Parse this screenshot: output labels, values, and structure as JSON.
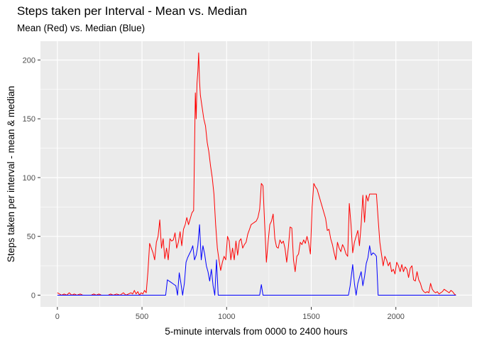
{
  "chart_data": {
    "type": "line",
    "title": "Steps taken per Interval - Mean vs. Median",
    "subtitle": "Mean (Red) vs. Median (Blue)",
    "xlabel": "5-minute intervals from 0000 to 2400 hours",
    "ylabel": "Steps taken per interval - mean & median",
    "xlim": [
      -100,
      2450
    ],
    "ylim": [
      -10,
      216
    ],
    "x_ticks": [
      0,
      500,
      1000,
      1500,
      2000
    ],
    "y_ticks": [
      0,
      50,
      100,
      150,
      200
    ],
    "grid": true,
    "colors": {
      "panel": "#EBEBEB",
      "grid": "#ffffff",
      "mean": "#FF0000",
      "median": "#0000FF"
    },
    "series": [
      {
        "name": "Mean",
        "color": "#FF0000",
        "points": [
          [
            0,
            2
          ],
          [
            25,
            0
          ],
          [
            40,
            1
          ],
          [
            55,
            0
          ],
          [
            70,
            2
          ],
          [
            85,
            0
          ],
          [
            100,
            1
          ],
          [
            115,
            0
          ],
          [
            135,
            1
          ],
          [
            150,
            0
          ],
          [
            200,
            0
          ],
          [
            215,
            1
          ],
          [
            230,
            0
          ],
          [
            245,
            1
          ],
          [
            260,
            0
          ],
          [
            300,
            0
          ],
          [
            315,
            1
          ],
          [
            330,
            0
          ],
          [
            350,
            1
          ],
          [
            370,
            0
          ],
          [
            390,
            2
          ],
          [
            405,
            0
          ],
          [
            420,
            1
          ],
          [
            435,
            2
          ],
          [
            445,
            1
          ],
          [
            455,
            4
          ],
          [
            465,
            1
          ],
          [
            475,
            3
          ],
          [
            485,
            0
          ],
          [
            495,
            2
          ],
          [
            505,
            1
          ],
          [
            515,
            4
          ],
          [
            525,
            2
          ],
          [
            535,
            20
          ],
          [
            545,
            44
          ],
          [
            555,
            40
          ],
          [
            565,
            36
          ],
          [
            575,
            30
          ],
          [
            585,
            45
          ],
          [
            595,
            50
          ],
          [
            605,
            64
          ],
          [
            615,
            40
          ],
          [
            625,
            48
          ],
          [
            635,
            31
          ],
          [
            645,
            40
          ],
          [
            655,
            30
          ],
          [
            665,
            48
          ],
          [
            675,
            46
          ],
          [
            685,
            47
          ],
          [
            695,
            53
          ],
          [
            705,
            40
          ],
          [
            715,
            45
          ],
          [
            725,
            54
          ],
          [
            735,
            42
          ],
          [
            745,
            56
          ],
          [
            755,
            60
          ],
          [
            765,
            66
          ],
          [
            775,
            60
          ],
          [
            785,
            65
          ],
          [
            795,
            70
          ],
          [
            805,
            72
          ],
          [
            815,
            172
          ],
          [
            820,
            150
          ],
          [
            825,
            180
          ],
          [
            830,
            190
          ],
          [
            835,
            206
          ],
          [
            840,
            182
          ],
          [
            845,
            170
          ],
          [
            855,
            160
          ],
          [
            865,
            150
          ],
          [
            875,
            144
          ],
          [
            885,
            130
          ],
          [
            895,
            122
          ],
          [
            905,
            110
          ],
          [
            915,
            100
          ],
          [
            925,
            86
          ],
          [
            935,
            60
          ],
          [
            945,
            40
          ],
          [
            955,
            30
          ],
          [
            965,
            21
          ],
          [
            975,
            28
          ],
          [
            985,
            33
          ],
          [
            995,
            30
          ],
          [
            1005,
            50
          ],
          [
            1015,
            46
          ],
          [
            1025,
            30
          ],
          [
            1035,
            40
          ],
          [
            1045,
            30
          ],
          [
            1055,
            46
          ],
          [
            1065,
            34
          ],
          [
            1075,
            46
          ],
          [
            1085,
            48
          ],
          [
            1095,
            40
          ],
          [
            1105,
            43
          ],
          [
            1115,
            45
          ],
          [
            1125,
            52
          ],
          [
            1135,
            56
          ],
          [
            1145,
            60
          ],
          [
            1155,
            61
          ],
          [
            1165,
            62
          ],
          [
            1175,
            63
          ],
          [
            1185,
            66
          ],
          [
            1195,
            73
          ],
          [
            1205,
            95
          ],
          [
            1215,
            93
          ],
          [
            1225,
            60
          ],
          [
            1235,
            28
          ],
          [
            1245,
            45
          ],
          [
            1255,
            60
          ],
          [
            1265,
            63
          ],
          [
            1275,
            69
          ],
          [
            1285,
            48
          ],
          [
            1295,
            41
          ],
          [
            1305,
            40
          ],
          [
            1315,
            47
          ],
          [
            1325,
            44
          ],
          [
            1335,
            46
          ],
          [
            1345,
            40
          ],
          [
            1355,
            28
          ],
          [
            1365,
            41
          ],
          [
            1375,
            58
          ],
          [
            1385,
            57
          ],
          [
            1395,
            30
          ],
          [
            1405,
            20
          ],
          [
            1415,
            33
          ],
          [
            1425,
            35
          ],
          [
            1435,
            45
          ],
          [
            1445,
            43
          ],
          [
            1455,
            47
          ],
          [
            1465,
            44
          ],
          [
            1475,
            50
          ],
          [
            1485,
            44
          ],
          [
            1495,
            35
          ],
          [
            1505,
            75
          ],
          [
            1515,
            95
          ],
          [
            1525,
            92
          ],
          [
            1535,
            90
          ],
          [
            1545,
            85
          ],
          [
            1555,
            80
          ],
          [
            1565,
            75
          ],
          [
            1575,
            70
          ],
          [
            1585,
            65
          ],
          [
            1595,
            55
          ],
          [
            1605,
            56
          ],
          [
            1615,
            48
          ],
          [
            1625,
            43
          ],
          [
            1635,
            36
          ],
          [
            1645,
            30
          ],
          [
            1655,
            45
          ],
          [
            1665,
            40
          ],
          [
            1675,
            37
          ],
          [
            1685,
            43
          ],
          [
            1695,
            40
          ],
          [
            1705,
            35
          ],
          [
            1715,
            33
          ],
          [
            1725,
            78
          ],
          [
            1735,
            60
          ],
          [
            1745,
            36
          ],
          [
            1755,
            45
          ],
          [
            1765,
            50
          ],
          [
            1775,
            55
          ],
          [
            1785,
            42
          ],
          [
            1795,
            60
          ],
          [
            1805,
            85
          ],
          [
            1815,
            62
          ],
          [
            1825,
            85
          ],
          [
            1835,
            80
          ],
          [
            1845,
            86
          ],
          [
            1855,
            86
          ],
          [
            1865,
            86
          ],
          [
            1875,
            86
          ],
          [
            1885,
            86
          ],
          [
            1895,
            65
          ],
          [
            1905,
            45
          ],
          [
            1915,
            35
          ],
          [
            1925,
            25
          ],
          [
            1935,
            33
          ],
          [
            1945,
            30
          ],
          [
            1955,
            25
          ],
          [
            1965,
            28
          ],
          [
            1975,
            20
          ],
          [
            1985,
            22
          ],
          [
            1995,
            18
          ],
          [
            2005,
            28
          ],
          [
            2015,
            25
          ],
          [
            2025,
            20
          ],
          [
            2035,
            26
          ],
          [
            2045,
            20
          ],
          [
            2055,
            24
          ],
          [
            2065,
            22
          ],
          [
            2075,
            15
          ],
          [
            2085,
            23
          ],
          [
            2095,
            25
          ],
          [
            2105,
            13
          ],
          [
            2115,
            12
          ],
          [
            2125,
            20
          ],
          [
            2135,
            13
          ],
          [
            2145,
            10
          ],
          [
            2155,
            5
          ],
          [
            2165,
            3
          ],
          [
            2175,
            2
          ],
          [
            2185,
            3
          ],
          [
            2195,
            2
          ],
          [
            2205,
            10
          ],
          [
            2215,
            5
          ],
          [
            2225,
            3
          ],
          [
            2235,
            2
          ],
          [
            2245,
            3
          ],
          [
            2255,
            1
          ],
          [
            2265,
            2
          ],
          [
            2275,
            3
          ],
          [
            2285,
            5
          ],
          [
            2295,
            4
          ],
          [
            2305,
            3
          ],
          [
            2315,
            2
          ],
          [
            2325,
            4
          ],
          [
            2335,
            3
          ],
          [
            2345,
            1
          ],
          [
            2355,
            0
          ]
        ]
      },
      {
        "name": "Median",
        "color": "#0000FF",
        "points": [
          [
            0,
            0
          ],
          [
            640,
            0
          ],
          [
            650,
            13
          ],
          [
            660,
            12
          ],
          [
            670,
            11
          ],
          [
            680,
            10
          ],
          [
            690,
            9
          ],
          [
            700,
            8
          ],
          [
            710,
            0
          ],
          [
            720,
            19
          ],
          [
            730,
            10
          ],
          [
            740,
            0
          ],
          [
            750,
            10
          ],
          [
            760,
            28
          ],
          [
            770,
            32
          ],
          [
            780,
            35
          ],
          [
            790,
            38
          ],
          [
            800,
            42
          ],
          [
            810,
            30
          ],
          [
            820,
            34
          ],
          [
            830,
            42
          ],
          [
            840,
            60
          ],
          [
            850,
            30
          ],
          [
            860,
            42
          ],
          [
            870,
            35
          ],
          [
            880,
            25
          ],
          [
            890,
            20
          ],
          [
            900,
            12
          ],
          [
            910,
            22
          ],
          [
            920,
            8
          ],
          [
            930,
            0
          ],
          [
            940,
            30
          ],
          [
            950,
            0
          ],
          [
            1195,
            0
          ],
          [
            1205,
            9
          ],
          [
            1215,
            0
          ],
          [
            1720,
            0
          ],
          [
            1730,
            8
          ],
          [
            1745,
            26
          ],
          [
            1755,
            10
          ],
          [
            1765,
            0
          ],
          [
            1775,
            10
          ],
          [
            1785,
            15
          ],
          [
            1795,
            20
          ],
          [
            1805,
            8
          ],
          [
            1815,
            16
          ],
          [
            1825,
            27
          ],
          [
            1835,
            32
          ],
          [
            1845,
            42
          ],
          [
            1855,
            34
          ],
          [
            1865,
            36
          ],
          [
            1875,
            35
          ],
          [
            1885,
            33
          ],
          [
            1895,
            0
          ],
          [
            2355,
            0
          ]
        ]
      }
    ]
  }
}
